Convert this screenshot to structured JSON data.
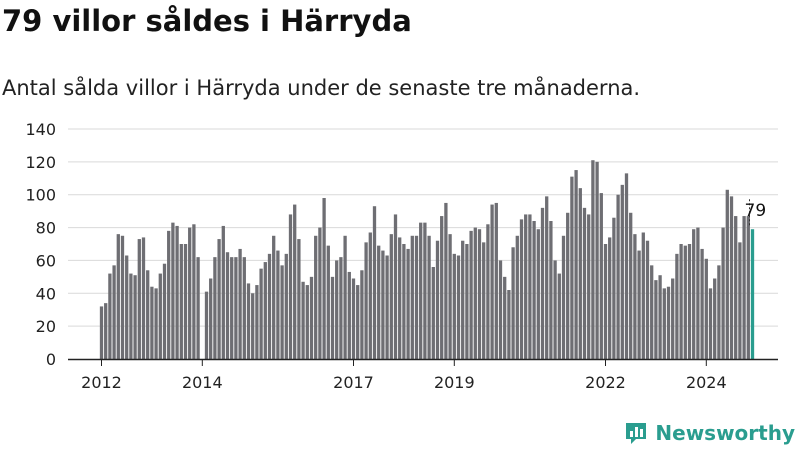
{
  "title": "79 villor såldes i Härryda",
  "subtitle": "Antal sålda villor i Härryda under de senaste tre månaderna.",
  "logo": {
    "text": "Newsworthy",
    "icon": "chart-logo-icon"
  },
  "colors": {
    "bar": "#6e6e73",
    "highlight": "#2a9d8f",
    "grid": "#d9d9d9",
    "axis": "#222222"
  },
  "chart_data": {
    "type": "bar",
    "title": "",
    "xlabel": "",
    "ylabel": "",
    "ylim": [
      0,
      140
    ],
    "yticks": [
      0,
      20,
      40,
      60,
      80,
      100,
      120,
      140
    ],
    "grid": true,
    "x_start": "2012-01",
    "x_end": "2025-01",
    "xtick_labels": [
      {
        "label": "2012",
        "month": "2012-01"
      },
      {
        "label": "2014",
        "month": "2014-01"
      },
      {
        "label": "2017",
        "month": "2017-01"
      },
      {
        "label": "2019",
        "month": "2019-01"
      },
      {
        "label": "2022",
        "month": "2022-01"
      },
      {
        "label": "2024",
        "month": "2024-01"
      }
    ],
    "series": [
      {
        "start_month": "2012-01",
        "values": [
          32,
          34,
          52,
          57,
          76,
          75,
          63,
          52,
          51,
          73,
          74,
          54,
          44,
          43,
          52,
          58,
          78,
          83,
          81,
          70,
          70,
          80,
          82,
          62,
          null,
          41,
          49,
          62,
          73,
          81,
          65,
          62,
          62,
          67,
          62,
          46,
          40,
          45,
          55,
          59,
          64,
          75,
          66,
          57,
          64,
          88,
          94,
          73,
          47,
          45,
          50,
          75,
          80,
          98,
          69,
          50,
          60,
          62,
          75,
          53,
          49,
          45,
          54,
          71,
          77,
          93,
          69,
          66,
          63,
          76,
          88,
          74,
          70,
          67,
          75,
          75,
          83,
          83,
          75,
          56,
          72,
          87,
          95,
          76,
          64,
          63,
          72,
          70,
          78,
          80,
          79,
          71,
          82,
          94,
          95,
          60,
          50,
          42,
          68,
          75,
          85,
          88,
          88,
          84,
          79,
          92,
          99,
          84,
          60,
          52,
          75,
          89,
          111,
          115,
          104,
          92,
          88,
          121,
          120,
          101,
          70,
          74,
          86,
          100,
          106,
          113,
          89,
          76,
          66,
          77,
          72,
          57,
          48,
          51,
          43,
          44,
          49,
          64,
          70,
          69,
          70,
          79,
          80,
          67,
          61,
          43,
          49,
          57,
          80,
          103,
          99,
          87,
          71,
          87,
          87,
          79
        ],
        "highlight_last": true,
        "last_value_label": "79"
      }
    ]
  }
}
